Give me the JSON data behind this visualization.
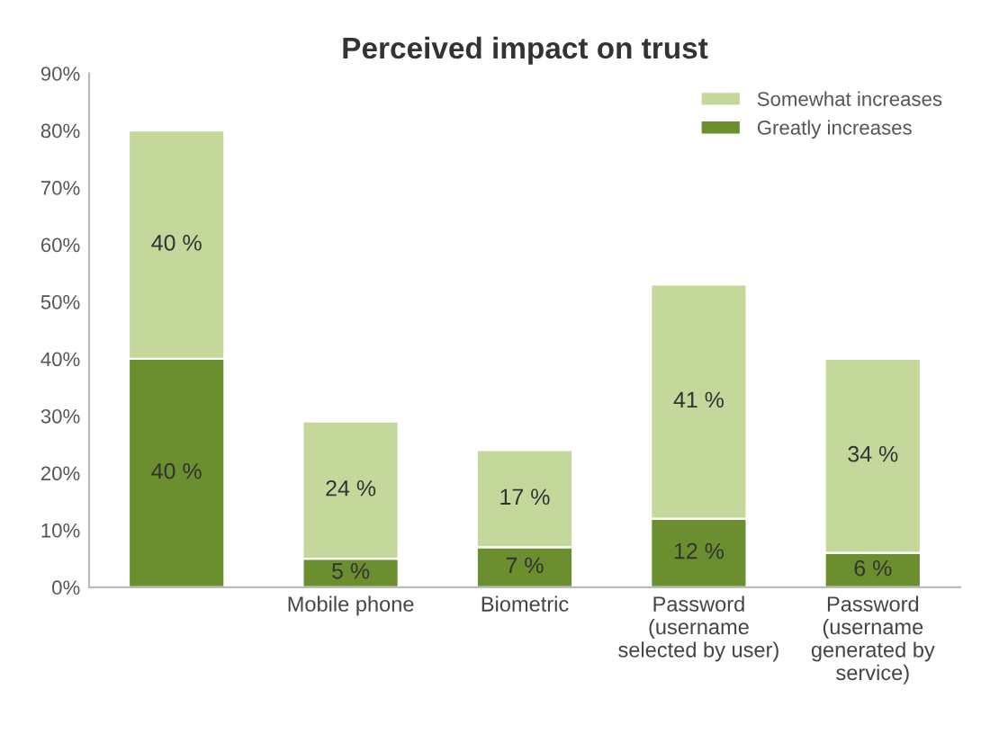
{
  "chart_data": {
    "type": "bar",
    "title": "Perceived impact on trust",
    "stacked": true,
    "categories": [
      null,
      "Mobile phone",
      "Biometric",
      "Password\n(username\nselected by user)",
      "Password\n(username\ngenerated by\nservice)"
    ],
    "series": [
      {
        "name": "Greatly increases",
        "color": "#6b8e2f",
        "values": [
          40,
          5,
          7,
          12,
          6
        ],
        "value_labels": [
          "40 %",
          "5 %",
          "7 %",
          "12 %",
          "6 %"
        ]
      },
      {
        "name": "Somewhat increases",
        "color": "#c4d89c",
        "values": [
          40,
          24,
          17,
          41,
          34
        ],
        "value_labels": [
          "40 %",
          "24 %",
          "17 %",
          "41 %",
          "34 %"
        ]
      }
    ],
    "ylim": [
      0,
      90
    ],
    "yticks": [
      {
        "value": 0,
        "label": "0%"
      },
      {
        "value": 10,
        "label": "10%"
      },
      {
        "value": 20,
        "label": "20%"
      },
      {
        "value": 30,
        "label": "30%"
      },
      {
        "value": 40,
        "label": "40%"
      },
      {
        "value": 50,
        "label": "50%"
      },
      {
        "value": 60,
        "label": "60%"
      },
      {
        "value": 70,
        "label": "70%"
      },
      {
        "value": 80,
        "label": "80%"
      },
      {
        "value": 90,
        "label": "90%"
      }
    ],
    "grid": false,
    "legend": "top right"
  }
}
